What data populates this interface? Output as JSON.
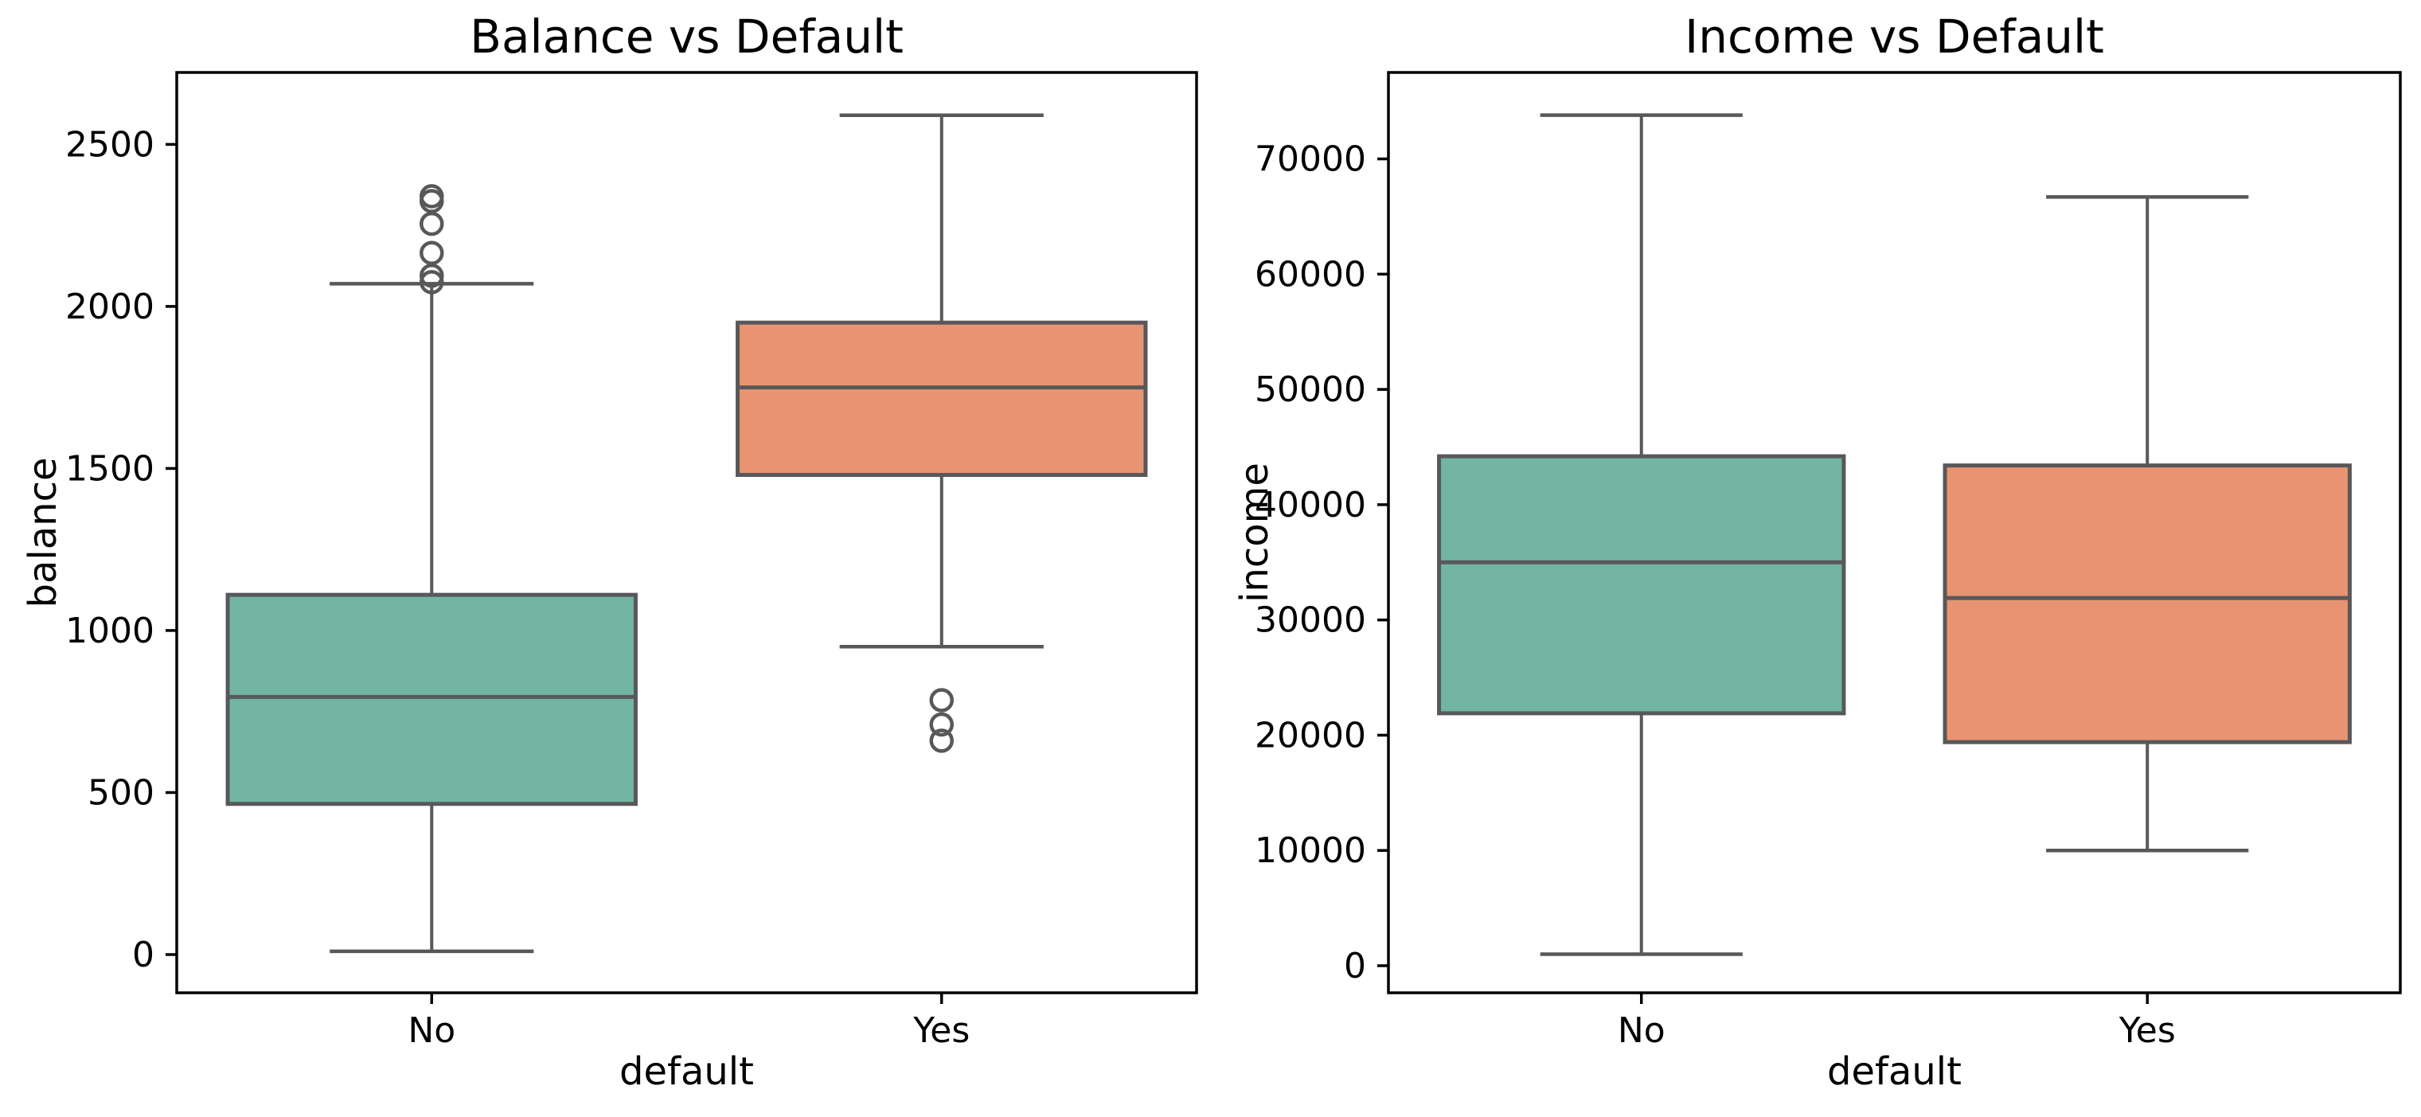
{
  "figure": {
    "background": "#ffffff",
    "text_color": "#000000",
    "box_line_color": "#58585a",
    "spine_color": "#000000",
    "palette": {
      "no_box": "#71b5a2",
      "yes_box": "#e89472"
    }
  },
  "chart_data": [
    {
      "type": "boxplot",
      "title": "Balance vs Default",
      "xlabel": "default",
      "ylabel": "balance",
      "categories": [
        "No",
        "Yes"
      ],
      "yticks": [
        0,
        500,
        1000,
        1500,
        2000,
        2500
      ],
      "ylim": [
        -118,
        2722
      ],
      "grid": false,
      "legend": null,
      "series": [
        {
          "category": "No",
          "color": "#71b5a2",
          "whisker_low": 10,
          "q1": 465,
          "median": 795,
          "q3": 1110,
          "whisker_high": 2070,
          "outliers": [
            2340,
            2325,
            2255,
            2165,
            2095,
            2075
          ]
        },
        {
          "category": "Yes",
          "color": "#e89472",
          "whisker_low": 950,
          "q1": 1480,
          "median": 1750,
          "q3": 1950,
          "whisker_high": 2590,
          "outliers": [
            785,
            710,
            660
          ]
        }
      ]
    },
    {
      "type": "boxplot",
      "title": "Income vs Default",
      "xlabel": "default",
      "ylabel": "income",
      "categories": [
        "No",
        "Yes"
      ],
      "yticks": [
        0,
        10000,
        20000,
        30000,
        40000,
        50000,
        60000,
        70000
      ],
      "ylim": [
        -2350,
        77500
      ],
      "grid": false,
      "legend": null,
      "series": [
        {
          "category": "No",
          "color": "#71b5a2",
          "whisker_low": 1000,
          "q1": 21900,
          "median": 35000,
          "q3": 44200,
          "whisker_high": 73800,
          "outliers": []
        },
        {
          "category": "Yes",
          "color": "#e89472",
          "whisker_low": 10000,
          "q1": 19400,
          "median": 31900,
          "q3": 43400,
          "whisker_high": 66700,
          "outliers": []
        }
      ]
    }
  ]
}
